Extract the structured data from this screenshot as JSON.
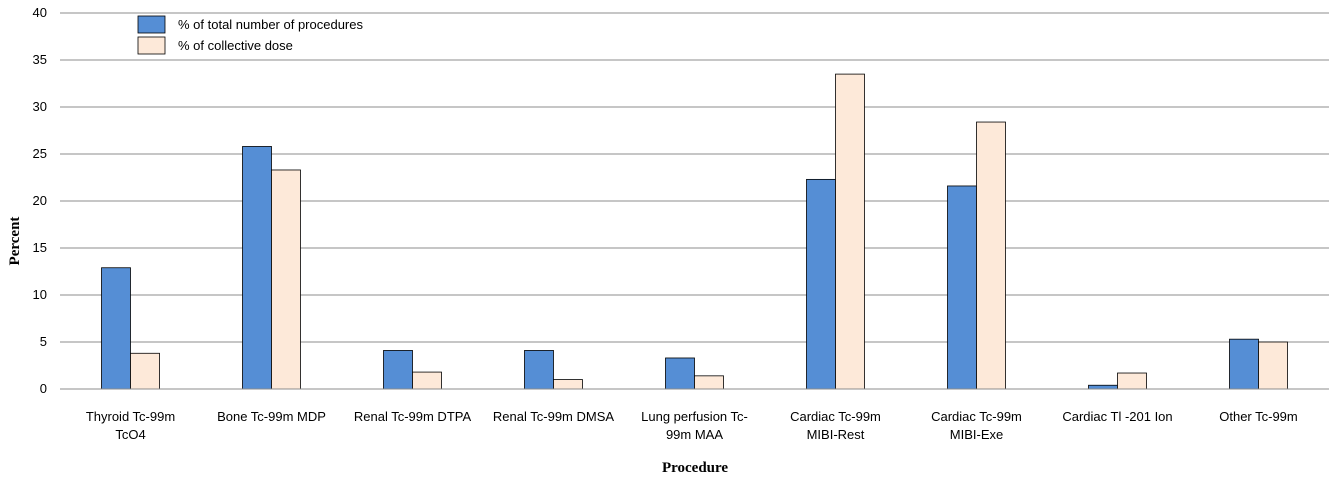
{
  "chart_data": {
    "type": "bar",
    "title": "",
    "xlabel": "Procedure",
    "ylabel": "Percent",
    "ylim": [
      0,
      40
    ],
    "yticks": [
      0,
      5,
      10,
      15,
      20,
      25,
      30,
      35,
      40
    ],
    "grid": true,
    "legend_position": "top-left",
    "categories": [
      [
        "Thyroid Tc-99m",
        "TcO4"
      ],
      [
        "Bone Tc-99m MDP"
      ],
      [
        "Renal Tc-99m DTPA"
      ],
      [
        "Renal Tc-99m DMSA"
      ],
      [
        "Lung perfusion Tc-",
        "99m MAA"
      ],
      [
        "Cardiac Tc-99m",
        "MIBI-Rest"
      ],
      [
        "Cardiac Tc-99m",
        "MIBI-Exe"
      ],
      [
        "Cardiac Tl -201 Ion"
      ],
      [
        "Other Tc-99m"
      ]
    ],
    "series": [
      {
        "name": "% of total number of procedures",
        "color": "#558ed5",
        "values": [
          12.9,
          25.8,
          4.1,
          4.1,
          3.3,
          22.3,
          21.6,
          0.4,
          5.3
        ]
      },
      {
        "name": "% of collective dose",
        "color": "#fde9d9",
        "values": [
          3.8,
          23.3,
          1.8,
          1.0,
          1.4,
          33.5,
          28.4,
          1.7,
          5.0
        ]
      }
    ]
  }
}
